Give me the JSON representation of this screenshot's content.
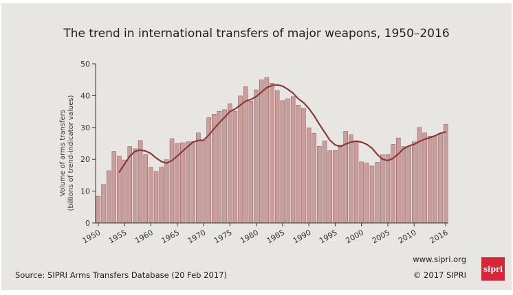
{
  "chart_data": {
    "type": "bar",
    "title": "The trend in international transfers of major weapons, 1950–2016",
    "ylabel_lines": [
      "Volume of arms transfers",
      "(billions of trend-indicator values)"
    ],
    "xlabel": "",
    "ylim": [
      0,
      50
    ],
    "yticks": [
      0,
      10,
      20,
      30,
      40,
      50
    ],
    "xticks": [
      "1950",
      "1955",
      "1960",
      "1965",
      "1970",
      "1975",
      "1980",
      "1985",
      "1990",
      "1995",
      "2000",
      "2005",
      "2010",
      "2016"
    ],
    "grid": false,
    "colors": {
      "bar": "#c99e9c",
      "bar_edge": "#8d5855",
      "trend": "#8b3a3a"
    },
    "series": [
      {
        "kind": "bar",
        "x": [
          1950,
          1951,
          1952,
          1953,
          1954,
          1955,
          1956,
          1957,
          1958,
          1959,
          1960,
          1961,
          1962,
          1963,
          1964,
          1965,
          1966,
          1967,
          1968,
          1969,
          1970,
          1971,
          1972,
          1973,
          1974,
          1975,
          1976,
          1977,
          1978,
          1979,
          1980,
          1981,
          1982,
          1983,
          1984,
          1985,
          1986,
          1987,
          1988,
          1989,
          1990,
          1991,
          1992,
          1993,
          1994,
          1995,
          1996,
          1997,
          1998,
          1999,
          2000,
          2001,
          2002,
          2003,
          2004,
          2005,
          2006,
          2007,
          2008,
          2009,
          2010,
          2011,
          2012,
          2013,
          2014,
          2015,
          2016
        ],
        "values": [
          8.4,
          12.1,
          16.4,
          22.5,
          21.0,
          19.8,
          24.0,
          23.3,
          25.9,
          21.5,
          17.5,
          16.2,
          17.6,
          19.9,
          26.5,
          25.0,
          25.2,
          25.5,
          25.6,
          28.3,
          26.0,
          33.1,
          34.2,
          35.1,
          35.6,
          37.5,
          35.1,
          39.9,
          42.8,
          38.3,
          41.8,
          45.0,
          45.7,
          43.9,
          41.6,
          38.4,
          39.0,
          39.7,
          37.0,
          36.0,
          29.9,
          28.2,
          24.1,
          25.8,
          22.7,
          22.8,
          24.5,
          28.8,
          27.7,
          25.8,
          19.2,
          18.8,
          17.9,
          19.1,
          21.4,
          21.5,
          24.7,
          26.7,
          24.0,
          24.1,
          25.5,
          30.0,
          28.3,
          27.3,
          27.4,
          28.2,
          31.0
        ]
      },
      {
        "kind": "line",
        "name": "",
        "x": [
          1954,
          1955,
          1956,
          1957,
          1958,
          1959,
          1960,
          1961,
          1962,
          1963,
          1964,
          1965,
          1966,
          1967,
          1968,
          1969,
          1970,
          1971,
          1972,
          1973,
          1974,
          1975,
          1976,
          1977,
          1978,
          1979,
          1980,
          1981,
          1982,
          1983,
          1984,
          1985,
          1986,
          1987,
          1988,
          1989,
          1990,
          1991,
          1992,
          1993,
          1994,
          1995,
          1996,
          1997,
          1998,
          1999,
          2000,
          2001,
          2002,
          2003,
          2004,
          2005,
          2006,
          2007,
          2008,
          2009,
          2010,
          2011,
          2012,
          2013,
          2014,
          2015,
          2016
        ],
        "values": [
          16.0,
          18.5,
          21.0,
          22.5,
          22.9,
          22.6,
          21.8,
          20.4,
          19.3,
          18.8,
          19.6,
          21.0,
          22.5,
          24.0,
          25.4,
          25.9,
          26.0,
          27.6,
          29.6,
          31.5,
          33.2,
          35.0,
          35.8,
          37.0,
          38.3,
          38.8,
          39.7,
          41.1,
          42.5,
          43.2,
          43.4,
          43.0,
          42.0,
          40.8,
          39.0,
          37.8,
          36.0,
          33.7,
          31.0,
          28.5,
          26.0,
          24.5,
          24.0,
          24.8,
          25.4,
          25.7,
          25.4,
          24.7,
          23.5,
          21.5,
          20.0,
          19.6,
          20.3,
          21.7,
          23.3,
          24.2,
          24.7,
          25.6,
          26.3,
          26.8,
          27.4,
          28.2,
          28.6
        ]
      }
    ]
  },
  "footer": {
    "source": "Source: SIPRI Arms Transfers Database (20 Feb 2017)",
    "website": "www.sipri.org",
    "copyright": "© 2017 SIPRI",
    "logo_text": "sipri",
    "logo_color": "#d5263a"
  }
}
